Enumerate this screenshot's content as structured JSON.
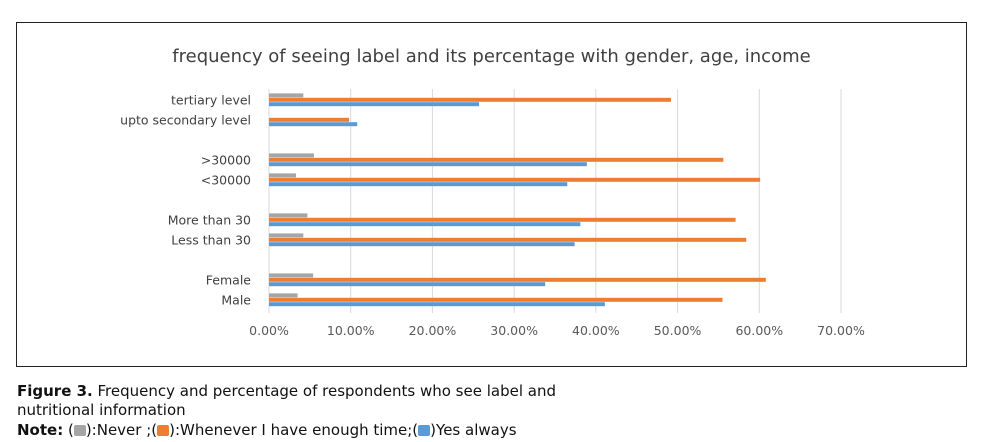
{
  "chart_data": {
    "type": "bar",
    "orientation": "horizontal",
    "title": "frequency of seeing label and its percentage with gender, age, income",
    "categories": [
      "tertiary level",
      "upto secondary level",
      ">30000",
      "<30000",
      "More than 30",
      "Less than 30",
      "Female",
      "Male"
    ],
    "series": [
      {
        "name": "Never",
        "color": "#a5a5a5",
        "values": [
          4.2,
          0.0,
          5.5,
          3.3,
          4.7,
          4.2,
          5.4,
          3.5
        ]
      },
      {
        "name": "Whenever I have enough time",
        "color": "#ed7d31",
        "values": [
          49.2,
          9.8,
          55.6,
          60.1,
          57.1,
          58.4,
          60.8,
          55.5
        ]
      },
      {
        "name": "Yes always",
        "color": "#5b9bd5",
        "values": [
          25.7,
          10.8,
          38.9,
          36.5,
          38.1,
          37.4,
          33.8,
          41.1
        ]
      }
    ],
    "xlim": [
      0,
      70
    ],
    "xticks": [
      "0.00%",
      "10.00%",
      "20.00%",
      "30.00%",
      "40.00%",
      "50.00%",
      "60.00%",
      "70.00%"
    ],
    "grid": true,
    "legend": "none"
  },
  "caption": {
    "figure_label": "Figure 3.",
    "figure_text": " Frequency and percentage of respondents who see label and nutritional information",
    "note_label": "Note:",
    "note_open_1": " (",
    "note_never": "):Never ;(",
    "note_whenever": "):Whenever I have enough time;(",
    "note_yes": ")Yes always"
  }
}
